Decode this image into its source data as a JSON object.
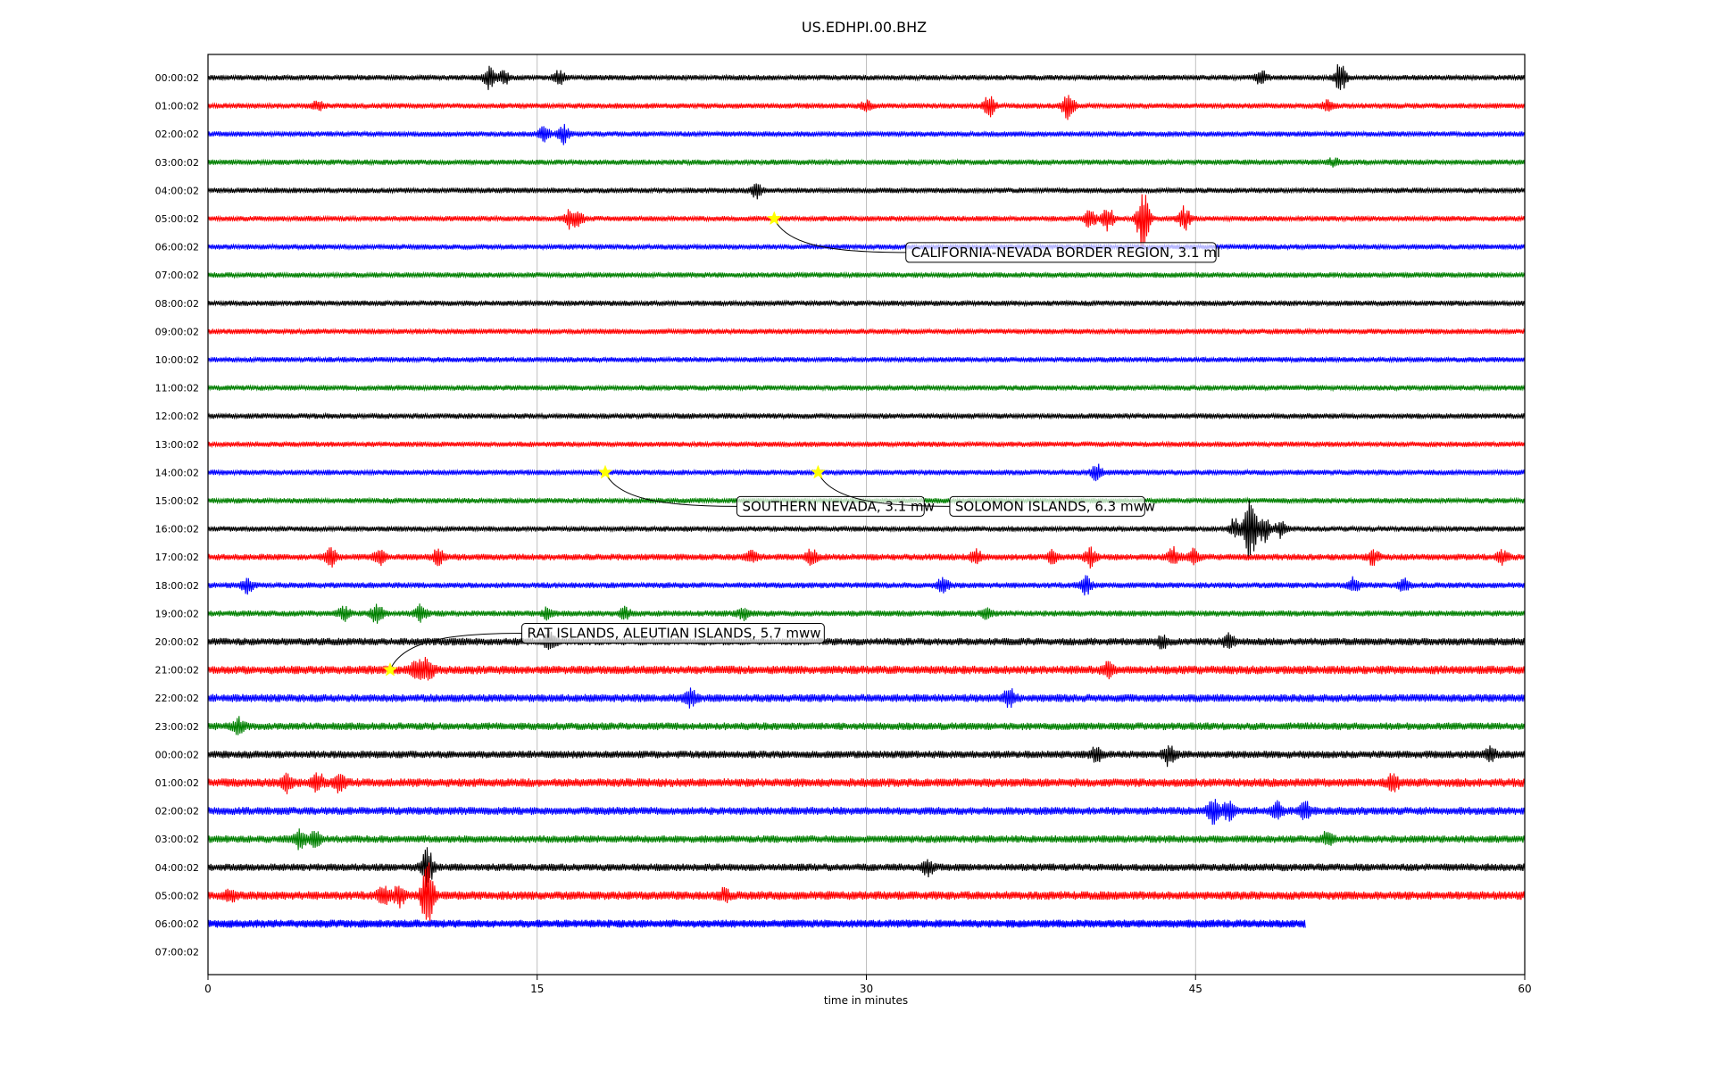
{
  "chart_data": {
    "type": "line",
    "title": "US.EDHPI.00.BHZ",
    "xlabel": "time in minutes",
    "ylabel": "",
    "xlim": [
      0,
      60
    ],
    "x_ticks": [
      0,
      15,
      30,
      45,
      60
    ],
    "x_tick_labels": [
      "0",
      "15",
      "30",
      "45",
      "60"
    ],
    "grid": "vertical lines at 15, 30, 45",
    "colors": [
      "#000000",
      "#ff0000",
      "#0000ff",
      "#008000"
    ],
    "row_labels": [
      "00:00:02",
      "01:00:02",
      "02:00:02",
      "03:00:02",
      "04:00:02",
      "05:00:02",
      "06:00:02",
      "07:00:02",
      "08:00:02",
      "09:00:02",
      "10:00:02",
      "11:00:02",
      "12:00:02",
      "13:00:02",
      "14:00:02",
      "15:00:02",
      "16:00:02",
      "17:00:02",
      "18:00:02",
      "19:00:02",
      "20:00:02",
      "21:00:02",
      "22:00:02",
      "23:00:02",
      "00:00:02",
      "01:00:02",
      "02:00:02",
      "03:00:02",
      "04:00:02",
      "05:00:02",
      "06:00:02",
      "07:00:02"
    ],
    "rows": [
      {
        "color": "#000000",
        "noise": 1.0,
        "end": 60,
        "bursts": [
          [
            12.8,
            3.5
          ],
          [
            13.5,
            2.5
          ],
          [
            16.0,
            2.2
          ],
          [
            48.0,
            2.5
          ],
          [
            51.6,
            5
          ]
        ]
      },
      {
        "color": "#ff0000",
        "noise": 1.0,
        "end": 60,
        "bursts": [
          [
            5.0,
            1.5
          ],
          [
            30.0,
            1.4
          ],
          [
            35.6,
            3.5
          ],
          [
            39.2,
            5
          ],
          [
            51.0,
            1.8
          ]
        ]
      },
      {
        "color": "#0000ff",
        "noise": 1.0,
        "end": 60,
        "bursts": [
          [
            15.3,
            2.5
          ],
          [
            16.2,
            3
          ]
        ]
      },
      {
        "color": "#008000",
        "noise": 1.0,
        "end": 60,
        "bursts": [
          [
            51.3,
            1.2
          ]
        ]
      },
      {
        "color": "#000000",
        "noise": 1.0,
        "end": 60,
        "bursts": [
          [
            25.0,
            2.5
          ]
        ]
      },
      {
        "color": "#ff0000",
        "noise": 1.0,
        "end": 60,
        "bursts": [
          [
            16.5,
            3
          ],
          [
            16.9,
            2
          ],
          [
            40.2,
            3
          ],
          [
            41.0,
            4
          ],
          [
            42.6,
            12
          ],
          [
            44.5,
            4
          ]
        ]
      },
      {
        "color": "#0000ff",
        "noise": 1.0,
        "end": 60,
        "bursts": []
      },
      {
        "color": "#008000",
        "noise": 1.0,
        "end": 60,
        "bursts": []
      },
      {
        "color": "#000000",
        "noise": 1.0,
        "end": 60,
        "bursts": []
      },
      {
        "color": "#ff0000",
        "noise": 1.0,
        "end": 60,
        "bursts": []
      },
      {
        "color": "#0000ff",
        "noise": 1.0,
        "end": 60,
        "bursts": []
      },
      {
        "color": "#008000",
        "noise": 1.0,
        "end": 60,
        "bursts": []
      },
      {
        "color": "#000000",
        "noise": 1.0,
        "end": 60,
        "bursts": []
      },
      {
        "color": "#ff0000",
        "noise": 1.0,
        "end": 60,
        "bursts": []
      },
      {
        "color": "#0000ff",
        "noise": 1.0,
        "end": 60,
        "bursts": [
          [
            40.5,
            2.5
          ]
        ]
      },
      {
        "color": "#008000",
        "noise": 1.0,
        "end": 60,
        "bursts": []
      },
      {
        "color": "#000000",
        "noise": 1.0,
        "end": 60,
        "bursts": [
          [
            46.8,
            3.5
          ],
          [
            47.5,
            13
          ],
          [
            48.1,
            4.5
          ],
          [
            48.9,
            3
          ]
        ]
      },
      {
        "color": "#ff0000",
        "noise": 1.2,
        "end": 60,
        "bursts": [
          [
            5.6,
            3
          ],
          [
            7.8,
            2.5
          ],
          [
            10.5,
            3
          ],
          [
            24.8,
            2
          ],
          [
            27.5,
            2.5
          ],
          [
            35.0,
            2.5
          ],
          [
            38.5,
            2
          ],
          [
            40.2,
            3
          ],
          [
            44.0,
            3
          ],
          [
            44.9,
            2.5
          ],
          [
            53.1,
            2.5
          ],
          [
            59.0,
            2
          ]
        ]
      },
      {
        "color": "#0000ff",
        "noise": 1.1,
        "end": 60,
        "bursts": [
          [
            1.8,
            2.5
          ],
          [
            33.5,
            2.5
          ],
          [
            40.0,
            3
          ],
          [
            52.2,
            2.5
          ],
          [
            54.5,
            2
          ]
        ]
      },
      {
        "color": "#008000",
        "noise": 1.1,
        "end": 60,
        "bursts": [
          [
            6.2,
            2.5
          ],
          [
            7.7,
            3.5
          ],
          [
            9.7,
            3
          ],
          [
            15.5,
            2
          ],
          [
            19.0,
            1.8
          ],
          [
            24.4,
            2
          ],
          [
            35.5,
            2
          ]
        ]
      },
      {
        "color": "#000000",
        "noise": 1.4,
        "end": 60,
        "bursts": [
          [
            15.6,
            3
          ],
          [
            43.5,
            2
          ],
          [
            46.5,
            2.5
          ]
        ]
      },
      {
        "color": "#ff0000",
        "noise": 1.6,
        "end": 60,
        "bursts": [
          [
            9.5,
            3
          ],
          [
            10.0,
            4
          ],
          [
            41.0,
            2.5
          ]
        ]
      },
      {
        "color": "#0000ff",
        "noise": 1.5,
        "end": 60,
        "bursts": [
          [
            22.0,
            3
          ],
          [
            36.5,
            3
          ]
        ]
      },
      {
        "color": "#008000",
        "noise": 1.4,
        "end": 60,
        "bursts": [
          [
            1.4,
            2.5
          ]
        ]
      },
      {
        "color": "#000000",
        "noise": 1.4,
        "end": 60,
        "bursts": [
          [
            40.5,
            2.5
          ],
          [
            43.8,
            4
          ],
          [
            58.4,
            2.5
          ]
        ]
      },
      {
        "color": "#ff0000",
        "noise": 1.6,
        "end": 60,
        "bursts": [
          [
            3.6,
            3
          ],
          [
            5.0,
            3
          ],
          [
            6.0,
            3
          ],
          [
            54.0,
            3
          ]
        ]
      },
      {
        "color": "#0000ff",
        "noise": 1.5,
        "end": 60,
        "bursts": [
          [
            45.8,
            4.5
          ],
          [
            46.5,
            3
          ],
          [
            48.7,
            2.5
          ],
          [
            50.0,
            3
          ]
        ]
      },
      {
        "color": "#008000",
        "noise": 1.4,
        "end": 60,
        "bursts": [
          [
            4.2,
            3
          ],
          [
            4.9,
            2.5
          ],
          [
            51.0,
            2
          ]
        ]
      },
      {
        "color": "#000000",
        "noise": 1.4,
        "end": 60,
        "bursts": [
          [
            10.0,
            7
          ],
          [
            32.8,
            2.5
          ]
        ]
      },
      {
        "color": "#ff0000",
        "noise": 1.6,
        "end": 60,
        "bursts": [
          [
            1.0,
            2
          ],
          [
            8.0,
            3
          ],
          [
            8.7,
            3.5
          ],
          [
            10.0,
            12
          ],
          [
            23.5,
            2
          ]
        ]
      },
      {
        "color": "#0000ff",
        "noise": 1.5,
        "end": 50,
        "bursts": []
      },
      {
        "color": "#ffffff",
        "noise": 0,
        "end": 0,
        "bursts": []
      }
    ],
    "events": [
      {
        "label": "CALIFORNIA-NEVADA BORDER REGION, 3.1 ml",
        "row": 5,
        "x": 25.8,
        "label_row": 6.2,
        "label_x": 31.8
      },
      {
        "label": "SOUTHERN NEVADA, 3.1 mw",
        "row": 14,
        "x": 18.1,
        "label_row": 15.2,
        "label_x": 24.1
      },
      {
        "label": "SOLOMON ISLANDS, 6.3 mww",
        "row": 14,
        "x": 27.8,
        "label_row": 15.2,
        "label_x": 33.8
      },
      {
        "label": "RAT ISLANDS, ALEUTIAN ISLANDS, 5.7 mww",
        "row": 21,
        "x": 8.3,
        "label_row": 19.7,
        "label_x": 14.3
      }
    ],
    "event_marker_color": "#ffff00"
  }
}
